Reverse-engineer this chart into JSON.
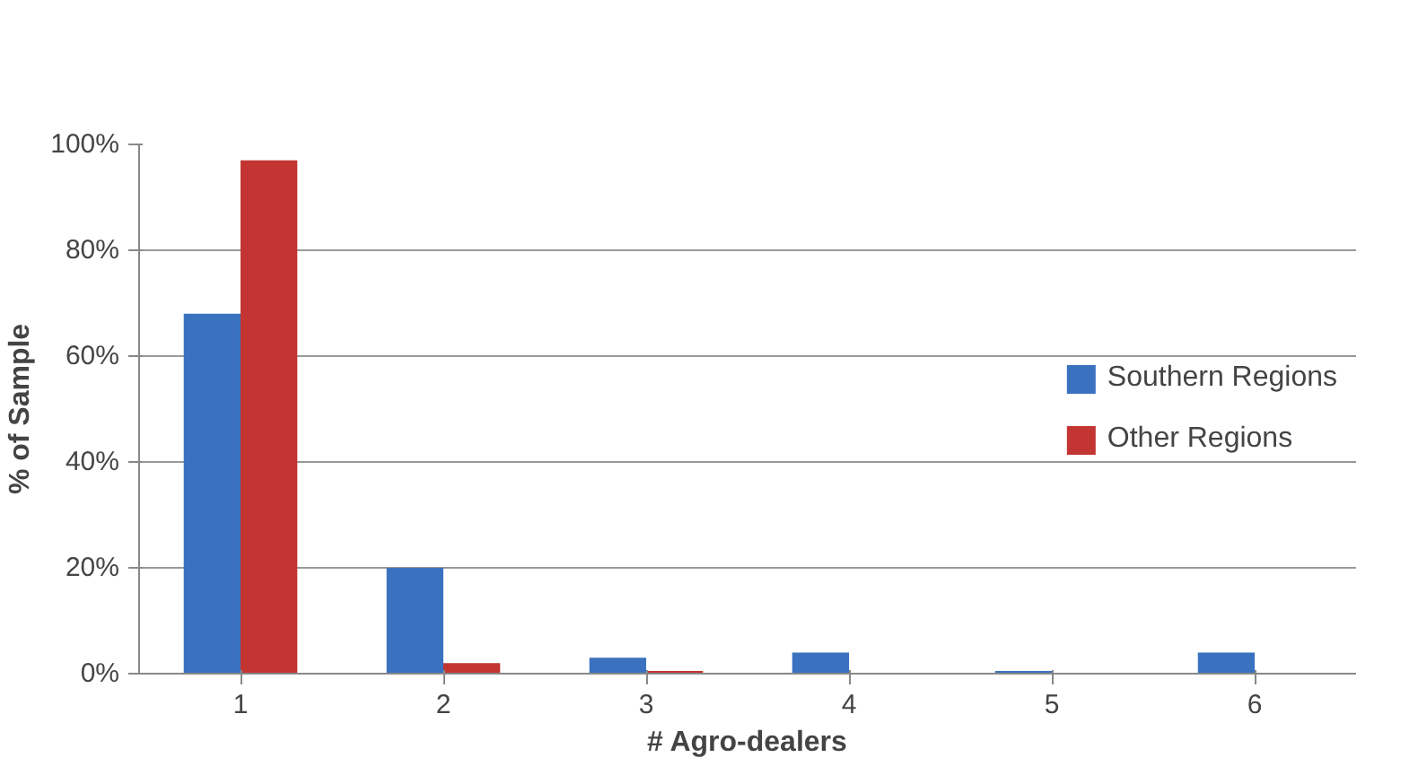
{
  "chart_data": {
    "type": "bar",
    "xlabel": "# Agro-dealers",
    "ylabel": "% of Sample",
    "categories": [
      "1",
      "2",
      "3",
      "4",
      "5",
      "6"
    ],
    "series": [
      {
        "name": "Southern Regions",
        "color": "#3a72c0",
        "values": [
          68,
          20,
          3,
          4,
          0.5,
          4
        ]
      },
      {
        "name": "Other Regions",
        "color": "#c23532",
        "values": [
          97,
          2,
          0.5,
          0,
          0,
          0
        ]
      }
    ],
    "ylim": [
      0,
      100
    ],
    "yticks": [
      {
        "value": 0,
        "label": "0%"
      },
      {
        "value": 20,
        "label": "20%"
      },
      {
        "value": 40,
        "label": "40%"
      },
      {
        "value": 60,
        "label": "60%"
      },
      {
        "value": 80,
        "label": "80%"
      },
      {
        "value": 100,
        "label": "100%"
      }
    ],
    "grid": "y",
    "legend": "right"
  }
}
